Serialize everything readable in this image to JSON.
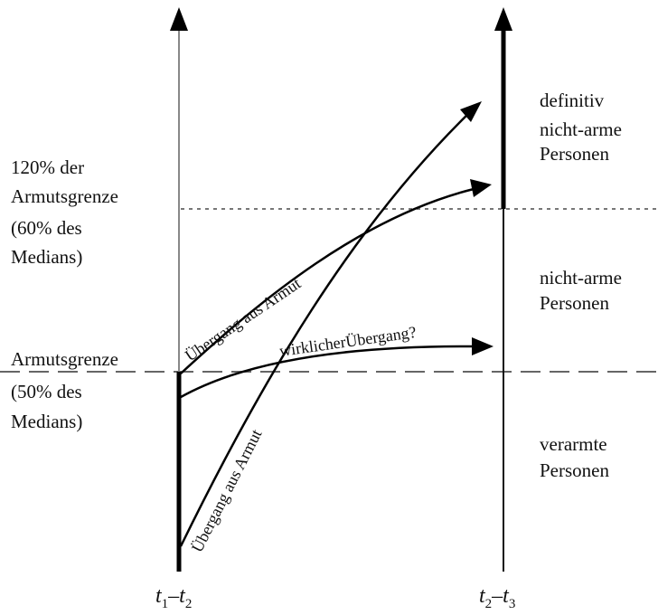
{
  "left_labels": {
    "upper_line1": "120% der",
    "upper_line2": "Armutsgrenze",
    "upper_line3": "(60% des",
    "upper_line4": "Medians)",
    "lower_line1": "Armutsgrenze",
    "lower_line2": "(50% des",
    "lower_line3": "Medians)"
  },
  "right_labels": {
    "top_line1": "definitiv",
    "top_line2": "nicht-arme",
    "top_line3": "Personen",
    "mid_line1": "nicht-arme",
    "mid_line2": "Personen",
    "bottom_line1": "verarmte",
    "bottom_line2": "Personen"
  },
  "path_labels": {
    "transition_upper": "Übergang aus Armut",
    "transition_lower": "Übergang aus Armut",
    "real_transition": "wirklicherÜbergang?"
  },
  "axis_labels": {
    "left": {
      "t": "t",
      "a": "1",
      "dash": "–",
      "t2": "t",
      "b": "2"
    },
    "right": {
      "t": "t",
      "a": "2",
      "dash": "–",
      "t2": "t",
      "b": "3"
    }
  }
}
